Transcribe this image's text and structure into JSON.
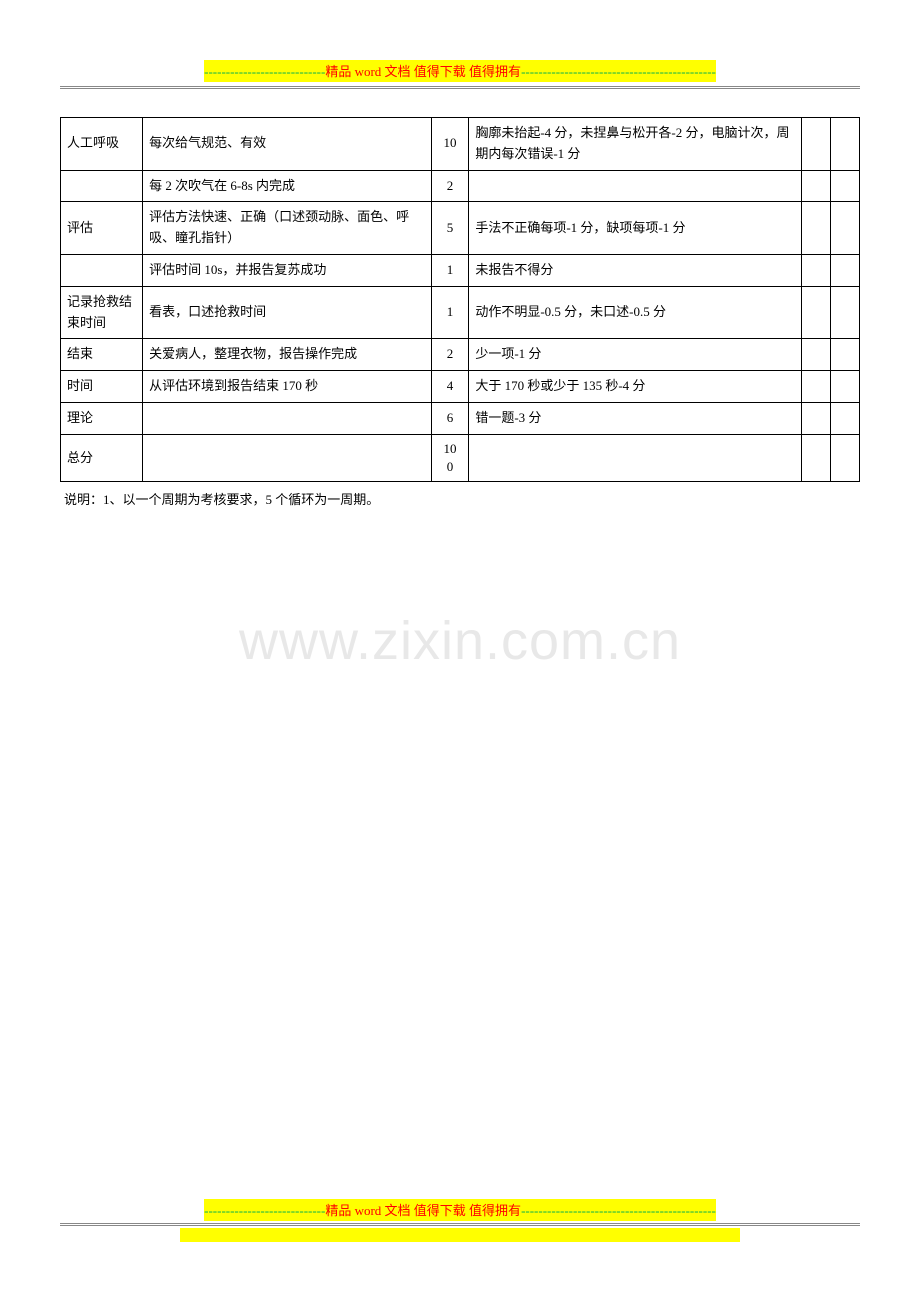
{
  "banner": {
    "dash_left": "----------------------------",
    "text": "精品 word 文档  值得下载  值得拥有",
    "dash_right": "---------------------------------------------"
  },
  "table": {
    "rows": [
      {
        "c0": "人工呼吸",
        "c1": "每次给气规范、有效",
        "c2": "10",
        "c3": "胸廓未抬起-4 分，未捏鼻与松开各-2 分，电脑计次，周期内每次错误-1 分",
        "c4": "",
        "c5": ""
      },
      {
        "c0": "",
        "c1": "每 2 次吹气在 6-8s 内完成",
        "c2": "2",
        "c3": "",
        "c4": "",
        "c5": ""
      },
      {
        "c0": "评估",
        "c1": "评估方法快速、正确（口述颈动脉、面色、呼吸、瞳孔指针）",
        "c2": "5",
        "c3": "手法不正确每项-1 分，缺项每项-1 分",
        "c4": "",
        "c5": ""
      },
      {
        "c0": "",
        "c1": "评估时间 10s，并报告复苏成功",
        "c2": "1",
        "c3": "未报告不得分",
        "c4": "",
        "c5": ""
      },
      {
        "c0": "记录抢救结束时间",
        "c1": "看表，口述抢救时间",
        "c2": "1",
        "c3": "动作不明显-0.5 分，未口述-0.5 分",
        "c4": "",
        "c5": ""
      },
      {
        "c0": "结束",
        "c1": "关爱病人，整理衣物，报告操作完成",
        "c2": "2",
        "c3": "少一项-1 分",
        "c4": "",
        "c5": ""
      },
      {
        "c0": "时间",
        "c1": "从评估环境到报告结束 170 秒",
        "c2": "4",
        "c3": "大于 170 秒或少于 135 秒-4 分",
        "c4": "",
        "c5": ""
      },
      {
        "c0": "理论",
        "c1": "",
        "c2": "6",
        "c3": "错一题-3 分",
        "c4": "",
        "c5": ""
      },
      {
        "c0": "总分",
        "c1": "",
        "c2": "100",
        "c3": "",
        "c4": "",
        "c5": ""
      }
    ]
  },
  "note": "说明：1、以一个周期为考核要求，5 个循环为一周期。",
  "watermark": "www.zixin.com.cn"
}
